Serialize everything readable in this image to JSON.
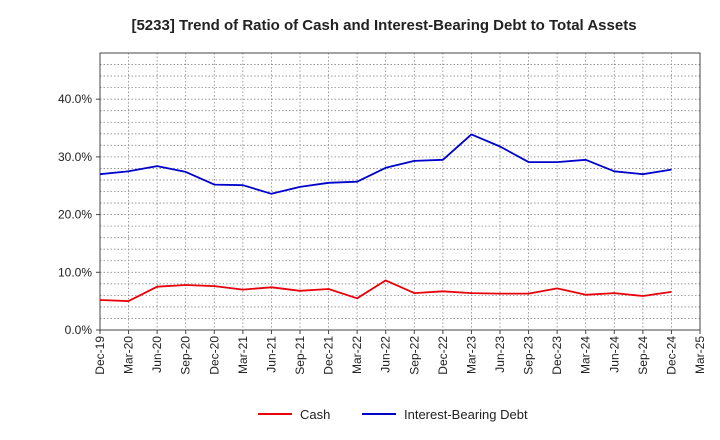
{
  "chart_data": {
    "type": "line",
    "title": "[5233]  Trend of Ratio of Cash and Interest-Bearing Debt to Total Assets",
    "xlabel": "",
    "ylabel": "",
    "x": [
      "Dec-19",
      "Mar-20",
      "Jun-20",
      "Sep-20",
      "Dec-20",
      "Mar-21",
      "Jun-21",
      "Sep-21",
      "Dec-21",
      "Mar-22",
      "Jun-22",
      "Sep-22",
      "Dec-22",
      "Mar-23",
      "Jun-23",
      "Sep-23",
      "Dec-23",
      "Mar-24",
      "Jun-24",
      "Sep-24",
      "Dec-24",
      "Mar-25"
    ],
    "y_ticks": [
      "0.0%",
      "10.0%",
      "20.0%",
      "30.0%",
      "40.0%"
    ],
    "ylim": [
      0,
      48
    ],
    "grid": true,
    "legend_position": "bottom",
    "series": [
      {
        "name": "Cash",
        "color": "#e8000b",
        "values": [
          5.2,
          5.0,
          7.5,
          7.8,
          7.6,
          7.0,
          7.4,
          6.8,
          7.1,
          5.5,
          8.6,
          6.4,
          6.7,
          6.4,
          6.3,
          6.3,
          7.2,
          6.1,
          6.4,
          5.9,
          6.6,
          null
        ]
      },
      {
        "name": "Interest-Bearing Debt",
        "color": "#0000cc",
        "values": [
          27.0,
          27.5,
          28.4,
          27.4,
          25.2,
          25.1,
          23.6,
          24.8,
          25.5,
          25.7,
          28.1,
          29.3,
          29.5,
          33.9,
          31.8,
          29.1,
          29.1,
          29.5,
          27.5,
          27.0,
          27.8,
          null
        ]
      }
    ]
  }
}
